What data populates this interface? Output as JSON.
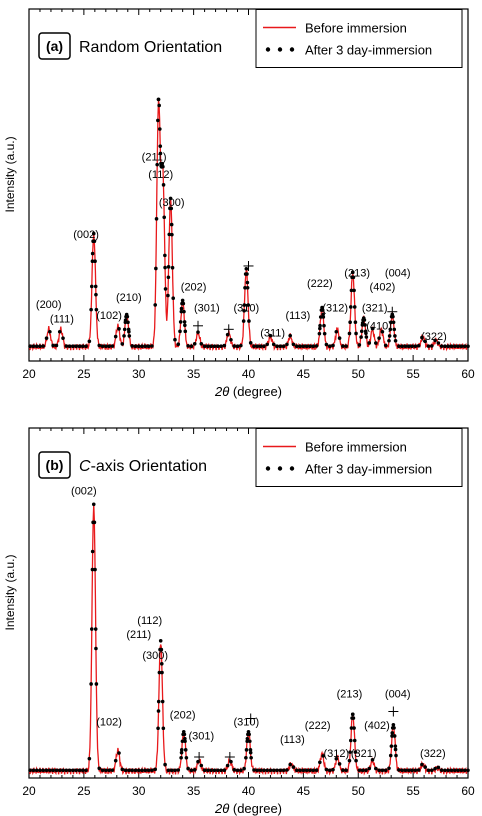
{
  "chart_data": [
    {
      "type": "line",
      "panel_label": "(a)",
      "title": "Random Orientation",
      "title_italic": "",
      "xlabel_prefix": "2θ",
      "xlabel_suffix": " (degree)",
      "ylabel": "Intensity (a.u.)",
      "xlim": [
        20,
        60
      ],
      "x_ticks": [
        "20",
        "25",
        "30",
        "35",
        "40",
        "45",
        "50",
        "55",
        "60"
      ],
      "legend": {
        "placement": "top-right",
        "entries": [
          "Before immersion",
          "After 3 day-immersion"
        ]
      },
      "series": [
        {
          "name": "Before immersion",
          "style": "line",
          "color": "#e8191b"
        },
        {
          "name": "After 3 day-immersion",
          "style": "dots",
          "color": "#000000"
        }
      ],
      "baseline": 0.04,
      "peaks": [
        {
          "x": 21.8,
          "h": 0.05
        },
        {
          "x": 22.9,
          "h": 0.05
        },
        {
          "x": 25.9,
          "h": 0.32
        },
        {
          "x": 28.1,
          "h": 0.06
        },
        {
          "x": 28.9,
          "h": 0.09
        },
        {
          "x": 31.8,
          "h": 0.68
        },
        {
          "x": 32.2,
          "h": 0.48
        },
        {
          "x": 32.9,
          "h": 0.42
        },
        {
          "x": 34.0,
          "h": 0.13
        },
        {
          "x": 35.4,
          "h": 0.04
        },
        {
          "x": 38.2,
          "h": 0.04
        },
        {
          "x": 39.8,
          "h": 0.22
        },
        {
          "x": 42.0,
          "h": 0.03
        },
        {
          "x": 43.8,
          "h": 0.03
        },
        {
          "x": 46.7,
          "h": 0.11
        },
        {
          "x": 48.1,
          "h": 0.05
        },
        {
          "x": 49.5,
          "h": 0.21
        },
        {
          "x": 50.5,
          "h": 0.08
        },
        {
          "x": 51.3,
          "h": 0.05
        },
        {
          "x": 52.1,
          "h": 0.05
        },
        {
          "x": 53.1,
          "h": 0.09
        },
        {
          "x": 55.9,
          "h": 0.03
        },
        {
          "x": 57.1,
          "h": 0.02
        }
      ],
      "annotations": [
        {
          "text": "(200)",
          "x": 21.8,
          "y": 0.15
        },
        {
          "text": "(111)",
          "x": 23.0,
          "y": 0.11
        },
        {
          "text": "(002)",
          "x": 25.2,
          "y": 0.35
        },
        {
          "text": "(102)",
          "x": 27.3,
          "y": 0.12
        },
        {
          "text": "(210)",
          "x": 29.1,
          "y": 0.17
        },
        {
          "text": "(211)",
          "x": 31.4,
          "y": 0.57
        },
        {
          "text": "(112)",
          "x": 32.0,
          "y": 0.52
        },
        {
          "text": "(300)",
          "x": 33.0,
          "y": 0.44
        },
        {
          "text": "(202)",
          "x": 35.0,
          "y": 0.2
        },
        {
          "text": "(301)",
          "x": 36.2,
          "y": 0.14
        },
        {
          "text": "(310)",
          "x": 39.8,
          "y": 0.14
        },
        {
          "text": "(311)",
          "x": 42.2,
          "y": 0.07
        },
        {
          "text": "(113)",
          "x": 44.5,
          "y": 0.12
        },
        {
          "text": "(222)",
          "x": 46.5,
          "y": 0.21
        },
        {
          "text": "(312)",
          "x": 47.9,
          "y": 0.14
        },
        {
          "text": "(213)",
          "x": 49.9,
          "y": 0.24
        },
        {
          "text": "(004)",
          "x": 53.6,
          "y": 0.24
        },
        {
          "text": "(402)",
          "x": 52.2,
          "y": 0.2
        },
        {
          "text": "(321)",
          "x": 51.5,
          "y": 0.14
        },
        {
          "text": "(410)",
          "x": 51.9,
          "y": 0.09
        },
        {
          "text": "(322)",
          "x": 56.9,
          "y": 0.06
        }
      ],
      "plus_markers": [
        {
          "x": 35.4,
          "y": 0.1
        },
        {
          "x": 38.2,
          "y": 0.09
        },
        {
          "x": 40.0,
          "y": 0.27
        },
        {
          "x": 53.1,
          "y": 0.14
        }
      ]
    },
    {
      "type": "line",
      "panel_label": "(b)",
      "title": "-axis Orientation",
      "title_italic": "C",
      "xlabel_prefix": "2θ",
      "xlabel_suffix": " (degree)",
      "ylabel": "Intensity (a.u.)",
      "xlim": [
        20,
        60
      ],
      "x_ticks": [
        "20",
        "25",
        "30",
        "35",
        "40",
        "45",
        "50",
        "55",
        "60"
      ],
      "legend": {
        "placement": "top-right",
        "entries": [
          "Before immersion",
          "After 3 day-immersion"
        ]
      },
      "series": [
        {
          "name": "Before immersion",
          "style": "line",
          "color": "#e8191b"
        },
        {
          "name": "After 3 day-immersion",
          "style": "dots",
          "color": "#000000"
        }
      ],
      "baseline": 0.02,
      "peaks": [
        {
          "x": 25.9,
          "h": 0.76
        },
        {
          "x": 28.1,
          "h": 0.06
        },
        {
          "x": 32.0,
          "h": 0.37
        },
        {
          "x": 34.1,
          "h": 0.11
        },
        {
          "x": 35.5,
          "h": 0.03
        },
        {
          "x": 38.3,
          "h": 0.03
        },
        {
          "x": 40.0,
          "h": 0.11
        },
        {
          "x": 43.9,
          "h": 0.02
        },
        {
          "x": 46.7,
          "h": 0.05
        },
        {
          "x": 48.1,
          "h": 0.04
        },
        {
          "x": 49.5,
          "h": 0.16
        },
        {
          "x": 51.3,
          "h": 0.03
        },
        {
          "x": 53.2,
          "h": 0.13
        },
        {
          "x": 55.9,
          "h": 0.02
        },
        {
          "x": 57.2,
          "h": 0.01
        }
      ],
      "annotations": [
        {
          "text": "(002)",
          "x": 25.0,
          "y": 0.81
        },
        {
          "text": "(112)",
          "x": 31.0,
          "y": 0.44
        },
        {
          "text": "(211)",
          "x": 30.0,
          "y": 0.4
        },
        {
          "text": "(300)",
          "x": 31.5,
          "y": 0.34
        },
        {
          "text": "(102)",
          "x": 27.3,
          "y": 0.15
        },
        {
          "text": "(202)",
          "x": 34.0,
          "y": 0.17
        },
        {
          "text": "(301)",
          "x": 35.7,
          "y": 0.11
        },
        {
          "text": "(310)",
          "x": 39.8,
          "y": 0.15
        },
        {
          "text": "(113)",
          "x": 44.0,
          "y": 0.1
        },
        {
          "text": "(222)",
          "x": 46.3,
          "y": 0.14
        },
        {
          "text": "(312)",
          "x": 48.0,
          "y": 0.06
        },
        {
          "text": "(321)",
          "x": 50.5,
          "y": 0.06
        },
        {
          "text": "(213)",
          "x": 49.2,
          "y": 0.23
        },
        {
          "text": "(402)",
          "x": 51.7,
          "y": 0.14
        },
        {
          "text": "(004)",
          "x": 53.6,
          "y": 0.23
        },
        {
          "text": "(322)",
          "x": 56.8,
          "y": 0.06
        }
      ],
      "plus_markers": [
        {
          "x": 35.5,
          "y": 0.06
        },
        {
          "x": 38.3,
          "y": 0.06
        },
        {
          "x": 40.2,
          "y": 0.17
        },
        {
          "x": 53.2,
          "y": 0.19
        }
      ]
    }
  ]
}
